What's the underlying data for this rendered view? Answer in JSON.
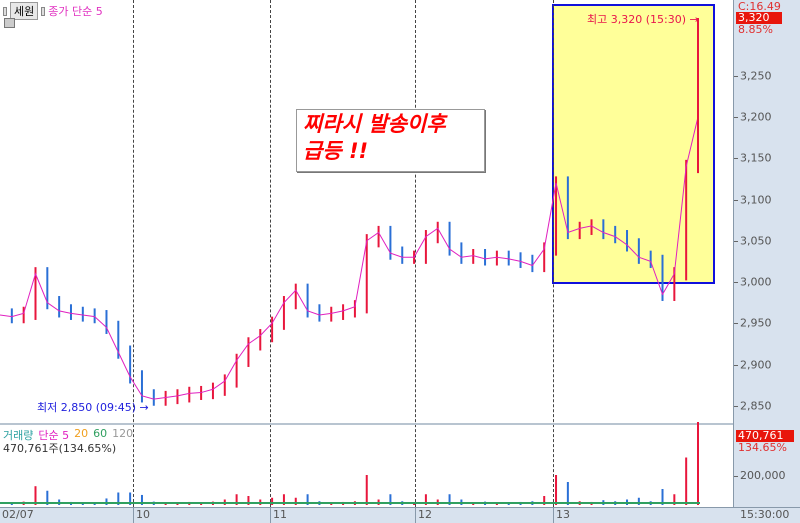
{
  "header": {
    "stock_name": "세원",
    "indicator": "종가 단순 5"
  },
  "price_axis": {
    "labels": [
      "3,250",
      "3,200",
      "3,150",
      "3,100",
      "3,050",
      "3,000",
      "2,950",
      "2,900",
      "2,850"
    ],
    "values": [
      3250,
      3200,
      3150,
      3100,
      3050,
      3000,
      2950,
      2900,
      2850
    ],
    "change_label": "C:16.49",
    "current_price": "3,320",
    "change_pct": "8.85%",
    "current_bg": "#e8160c"
  },
  "annotations": {
    "high": "최고 3,320 (15:30)",
    "low": "최저 2,850 (09:45)",
    "note_line1": "찌라시 발송이후",
    "note_line2": "급등 !!",
    "arrow": "→"
  },
  "volume": {
    "title": "거래량",
    "ma_label": "단순 5",
    "ma20": "20",
    "ma60": "60",
    "ma120": "120",
    "summary": "470,761주(134.65%)",
    "current": "470,761",
    "pct": "134.65%",
    "tick": "200,000"
  },
  "dates": [
    "02/07",
    "10",
    "11",
    "12",
    "13"
  ],
  "time_label": "15:30:00",
  "chart_data": {
    "type": "line",
    "prices": [
      2960,
      2958,
      2962,
      3010,
      2975,
      2965,
      2962,
      2960,
      2958,
      2945,
      2915,
      2885,
      2862,
      2858,
      2860,
      2862,
      2865,
      2866,
      2870,
      2880,
      2905,
      2925,
      2935,
      2950,
      2975,
      2990,
      2965,
      2960,
      2962,
      2965,
      2970,
      3050,
      3060,
      3035,
      3030,
      3030,
      3055,
      3065,
      3040,
      3030,
      3032,
      3028,
      3030,
      3028,
      3025,
      3020,
      3040,
      3120,
      3060,
      3065,
      3068,
      3060,
      3055,
      3045,
      3030,
      3025,
      2985,
      3010,
      3140,
      3200
    ],
    "high": 3320,
    "low": 2850,
    "colors": {
      "up": "#e8163c",
      "down": "#2a6fd6",
      "ma5": "#e020c0",
      "ma20": "#f0a020",
      "ma60": "#30a060",
      "ma120": "#999999"
    }
  }
}
